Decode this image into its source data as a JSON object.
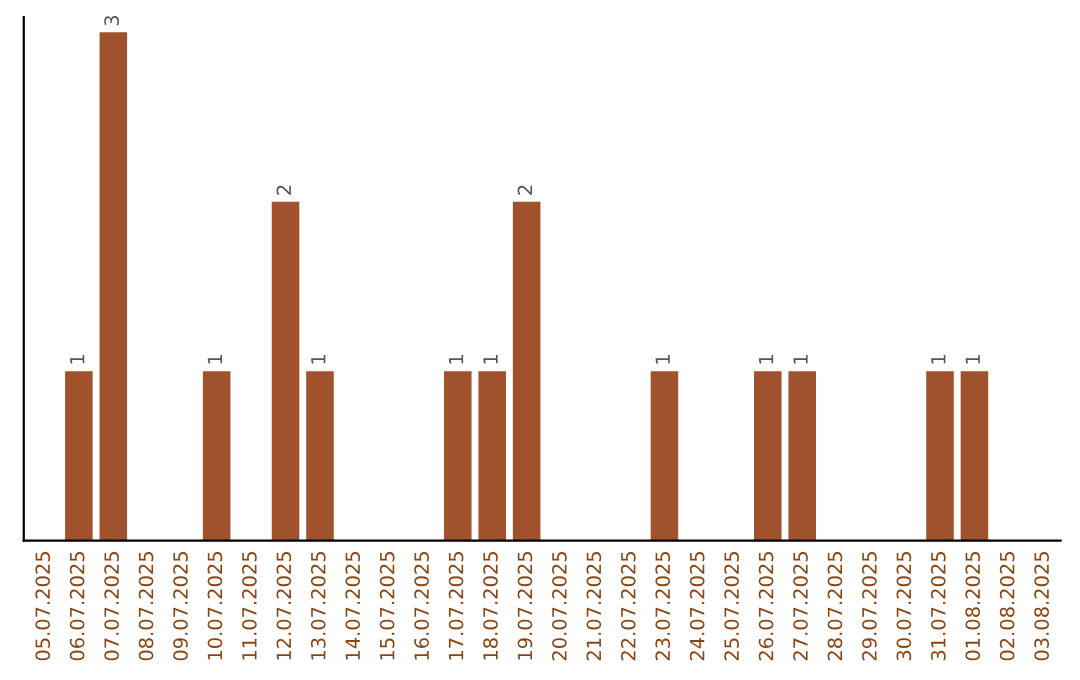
{
  "chart_data": {
    "type": "bar",
    "categories": [
      "05.07.2025",
      "06.07.2025",
      "07.07.2025",
      "08.07.2025",
      "09.07.2025",
      "10.07.2025",
      "11.07.2025",
      "12.07.2025",
      "13.07.2025",
      "14.07.2025",
      "15.07.2025",
      "16.07.2025",
      "17.07.2025",
      "18.07.2025",
      "19.07.2025",
      "20.07.2025",
      "21.07.2025",
      "22.07.2025",
      "23.07.2025",
      "24.07.2025",
      "25.07.2025",
      "26.07.2025",
      "27.07.2025",
      "28.07.2025",
      "29.07.2025",
      "30.07.2025",
      "31.07.2025",
      "01.08.2025",
      "02.08.2025",
      "03.08.2025"
    ],
    "values": [
      null,
      1,
      3,
      null,
      null,
      1,
      null,
      2,
      1,
      null,
      null,
      null,
      1,
      1,
      2,
      null,
      null,
      null,
      1,
      null,
      null,
      1,
      1,
      null,
      null,
      null,
      1,
      1,
      null,
      null
    ],
    "color": "#a0522d",
    "data_labels": true,
    "tick_labels": "x",
    "grid": false
  }
}
